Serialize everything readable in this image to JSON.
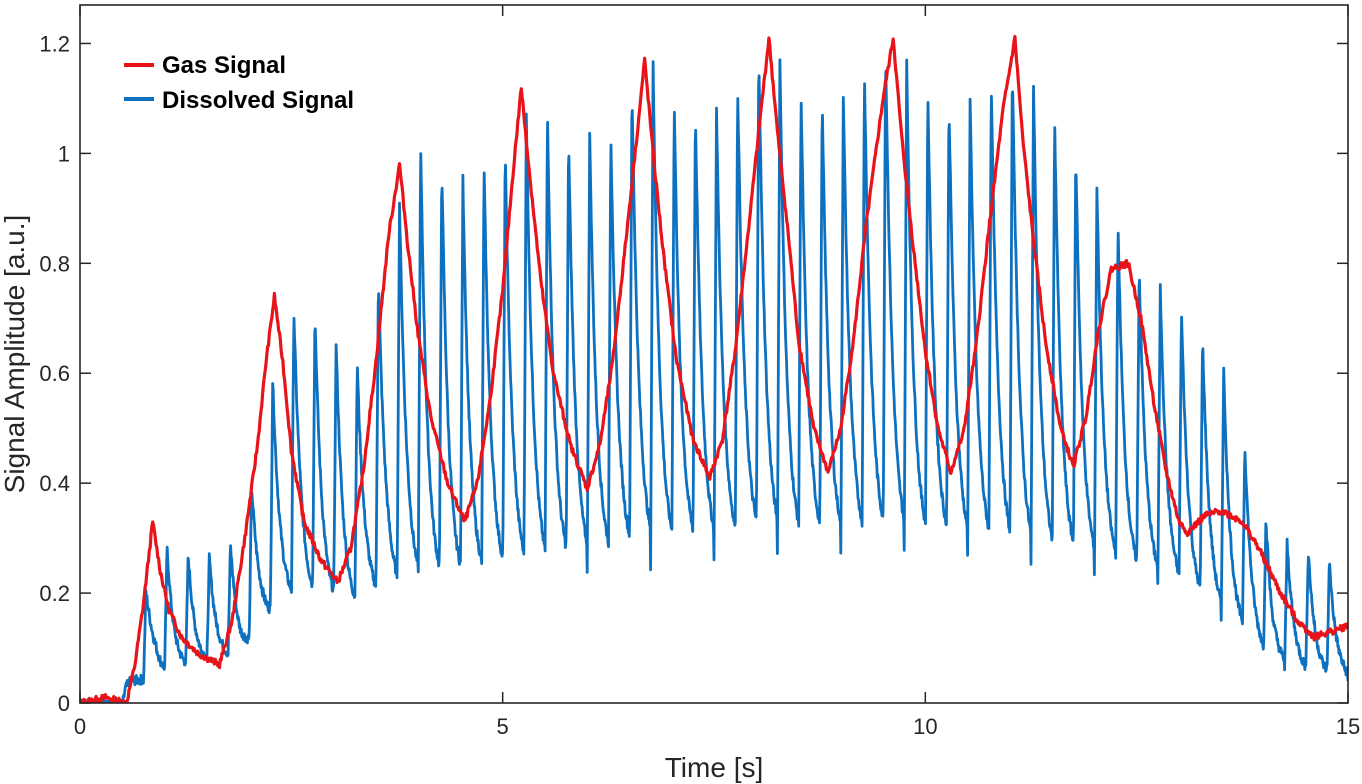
{
  "chart_data": {
    "type": "line",
    "title": "",
    "xlabel": "Time [s]",
    "ylabel": "Signal Amplitude [a.u.]",
    "xlim": [
      0,
      15
    ],
    "ylim": [
      0,
      1.27
    ],
    "xticks": [
      0,
      5,
      10,
      15
    ],
    "yticks": [
      0,
      0.2,
      0.4,
      0.6,
      0.8,
      1,
      1.2
    ],
    "xtick_labels": [
      "0",
      "5",
      "10",
      "15"
    ],
    "ytick_labels": [
      "0",
      "0.2",
      "0.4",
      "0.6",
      "0.8",
      "1",
      "1.2"
    ],
    "grid": false,
    "legend_position": "top-left",
    "series": [
      {
        "name": "Gas Signal",
        "color": "#e8141a",
        "peaks": [
          {
            "t": 0.86,
            "v": 0.33
          },
          {
            "t": 2.3,
            "v": 0.74
          },
          {
            "t": 3.78,
            "v": 0.98
          },
          {
            "t": 5.22,
            "v": 1.12
          },
          {
            "t": 6.68,
            "v": 1.17
          },
          {
            "t": 8.15,
            "v": 1.21
          },
          {
            "t": 9.62,
            "v": 1.21
          },
          {
            "t": 11.06,
            "v": 1.21
          },
          {
            "t": 12.4,
            "v": 0.8
          }
        ],
        "troughs": [
          {
            "t": 1.65,
            "v": 0.07
          },
          {
            "t": 3.05,
            "v": 0.22
          },
          {
            "t": 4.55,
            "v": 0.33
          },
          {
            "t": 6.0,
            "v": 0.39
          },
          {
            "t": 7.45,
            "v": 0.41
          },
          {
            "t": 8.85,
            "v": 0.42
          },
          {
            "t": 10.3,
            "v": 0.42
          },
          {
            "t": 11.75,
            "v": 0.43
          },
          {
            "t": 13.1,
            "v": 0.31
          },
          {
            "t": 14.6,
            "v": 0.12
          }
        ],
        "points": [
          [
            0,
            0.0
          ],
          [
            0.3,
            0.01
          ],
          [
            0.55,
            0.0
          ],
          [
            0.65,
            0.07
          ],
          [
            0.75,
            0.18
          ],
          [
            0.86,
            0.33
          ],
          [
            0.95,
            0.24
          ],
          [
            1.05,
            0.17
          ],
          [
            1.2,
            0.12
          ],
          [
            1.4,
            0.09
          ],
          [
            1.65,
            0.07
          ],
          [
            1.8,
            0.15
          ],
          [
            1.95,
            0.3
          ],
          [
            2.1,
            0.47
          ],
          [
            2.2,
            0.62
          ],
          [
            2.3,
            0.74
          ],
          [
            2.4,
            0.62
          ],
          [
            2.5,
            0.46
          ],
          [
            2.65,
            0.33
          ],
          [
            2.85,
            0.26
          ],
          [
            3.05,
            0.22
          ],
          [
            3.2,
            0.28
          ],
          [
            3.35,
            0.42
          ],
          [
            3.5,
            0.62
          ],
          [
            3.65,
            0.85
          ],
          [
            3.78,
            0.98
          ],
          [
            3.88,
            0.83
          ],
          [
            4.0,
            0.67
          ],
          [
            4.15,
            0.52
          ],
          [
            4.35,
            0.4
          ],
          [
            4.55,
            0.33
          ],
          [
            4.7,
            0.4
          ],
          [
            4.85,
            0.55
          ],
          [
            5.0,
            0.75
          ],
          [
            5.12,
            0.96
          ],
          [
            5.22,
            1.12
          ],
          [
            5.32,
            0.96
          ],
          [
            5.45,
            0.77
          ],
          [
            5.6,
            0.6
          ],
          [
            5.8,
            0.47
          ],
          [
            6.0,
            0.39
          ],
          [
            6.15,
            0.47
          ],
          [
            6.3,
            0.62
          ],
          [
            6.45,
            0.83
          ],
          [
            6.58,
            1.02
          ],
          [
            6.68,
            1.17
          ],
          [
            6.78,
            1.0
          ],
          [
            6.9,
            0.82
          ],
          [
            7.05,
            0.63
          ],
          [
            7.25,
            0.48
          ],
          [
            7.45,
            0.41
          ],
          [
            7.6,
            0.48
          ],
          [
            7.75,
            0.64
          ],
          [
            7.9,
            0.85
          ],
          [
            8.05,
            1.07
          ],
          [
            8.15,
            1.21
          ],
          [
            8.25,
            1.04
          ],
          [
            8.38,
            0.85
          ],
          [
            8.5,
            0.66
          ],
          [
            8.68,
            0.5
          ],
          [
            8.85,
            0.42
          ],
          [
            9.0,
            0.5
          ],
          [
            9.15,
            0.66
          ],
          [
            9.3,
            0.87
          ],
          [
            9.5,
            1.1
          ],
          [
            9.62,
            1.21
          ],
          [
            9.72,
            1.03
          ],
          [
            9.85,
            0.84
          ],
          [
            10.0,
            0.64
          ],
          [
            10.15,
            0.5
          ],
          [
            10.3,
            0.42
          ],
          [
            10.45,
            0.49
          ],
          [
            10.6,
            0.65
          ],
          [
            10.75,
            0.86
          ],
          [
            10.92,
            1.08
          ],
          [
            11.06,
            1.21
          ],
          [
            11.15,
            1.03
          ],
          [
            11.28,
            0.84
          ],
          [
            11.42,
            0.66
          ],
          [
            11.6,
            0.5
          ],
          [
            11.75,
            0.43
          ],
          [
            11.9,
            0.52
          ],
          [
            12.05,
            0.68
          ],
          [
            12.2,
            0.79
          ],
          [
            12.4,
            0.8
          ],
          [
            12.55,
            0.7
          ],
          [
            12.7,
            0.55
          ],
          [
            12.85,
            0.42
          ],
          [
            13.0,
            0.33
          ],
          [
            13.1,
            0.31
          ],
          [
            13.3,
            0.34
          ],
          [
            13.5,
            0.35
          ],
          [
            13.75,
            0.33
          ],
          [
            13.95,
            0.28
          ],
          [
            14.2,
            0.2
          ],
          [
            14.4,
            0.15
          ],
          [
            14.6,
            0.12
          ],
          [
            14.8,
            0.13
          ],
          [
            15.0,
            0.14
          ]
        ]
      },
      {
        "name": "Dissolved Signal",
        "color": "#0e71c0",
        "cycle_period_s": 0.25,
        "envelope_peaks": [
          [
            0.5,
            0.0
          ],
          [
            0.9,
            0.29
          ],
          [
            1.5,
            0.26
          ],
          [
            1.9,
            0.3
          ],
          [
            2.3,
            0.6
          ],
          [
            2.6,
            0.75
          ],
          [
            3.0,
            0.66
          ],
          [
            3.3,
            0.62
          ],
          [
            3.6,
            0.82
          ],
          [
            4.0,
            1.02
          ],
          [
            4.5,
            0.95
          ],
          [
            5.0,
            1.0
          ],
          [
            5.4,
            1.1
          ],
          [
            5.8,
            1.03
          ],
          [
            6.3,
            1.04
          ],
          [
            6.7,
            1.18
          ],
          [
            7.1,
            1.08
          ],
          [
            7.6,
            1.08
          ],
          [
            8.1,
            1.21
          ],
          [
            8.6,
            1.1
          ],
          [
            9.0,
            1.1
          ],
          [
            9.6,
            1.21
          ],
          [
            10.1,
            1.1
          ],
          [
            10.5,
            1.1
          ],
          [
            11.1,
            1.17
          ],
          [
            11.6,
            1.05
          ],
          [
            12.2,
            0.9
          ],
          [
            12.5,
            0.8
          ],
          [
            13.0,
            0.72
          ],
          [
            13.5,
            0.62
          ],
          [
            13.8,
            0.46
          ],
          [
            14.1,
            0.3
          ],
          [
            14.5,
            0.28
          ],
          [
            15.0,
            0.24
          ]
        ],
        "envelope_troughs": [
          [
            0.5,
            0.0
          ],
          [
            0.8,
            0.04
          ],
          [
            1.5,
            0.07
          ],
          [
            1.9,
            0.08
          ],
          [
            2.3,
            0.15
          ],
          [
            2.6,
            0.18
          ],
          [
            3.0,
            0.17
          ],
          [
            3.3,
            0.16
          ],
          [
            3.6,
            0.18
          ],
          [
            4.0,
            0.19
          ],
          [
            4.5,
            0.2
          ],
          [
            5.0,
            0.21
          ],
          [
            5.4,
            0.22
          ],
          [
            5.8,
            0.23
          ],
          [
            6.3,
            0.24
          ],
          [
            6.7,
            0.25
          ],
          [
            7.1,
            0.26
          ],
          [
            7.6,
            0.26
          ],
          [
            8.1,
            0.27
          ],
          [
            8.6,
            0.27
          ],
          [
            9.0,
            0.27
          ],
          [
            9.6,
            0.27
          ],
          [
            10.1,
            0.27
          ],
          [
            10.5,
            0.26
          ],
          [
            11.1,
            0.25
          ],
          [
            11.6,
            0.24
          ],
          [
            12.2,
            0.23
          ],
          [
            12.5,
            0.22
          ],
          [
            13.0,
            0.2
          ],
          [
            13.5,
            0.15
          ],
          [
            13.8,
            0.12
          ],
          [
            14.1,
            0.07
          ],
          [
            14.5,
            0.05
          ],
          [
            15.0,
            0.04
          ]
        ]
      }
    ]
  }
}
